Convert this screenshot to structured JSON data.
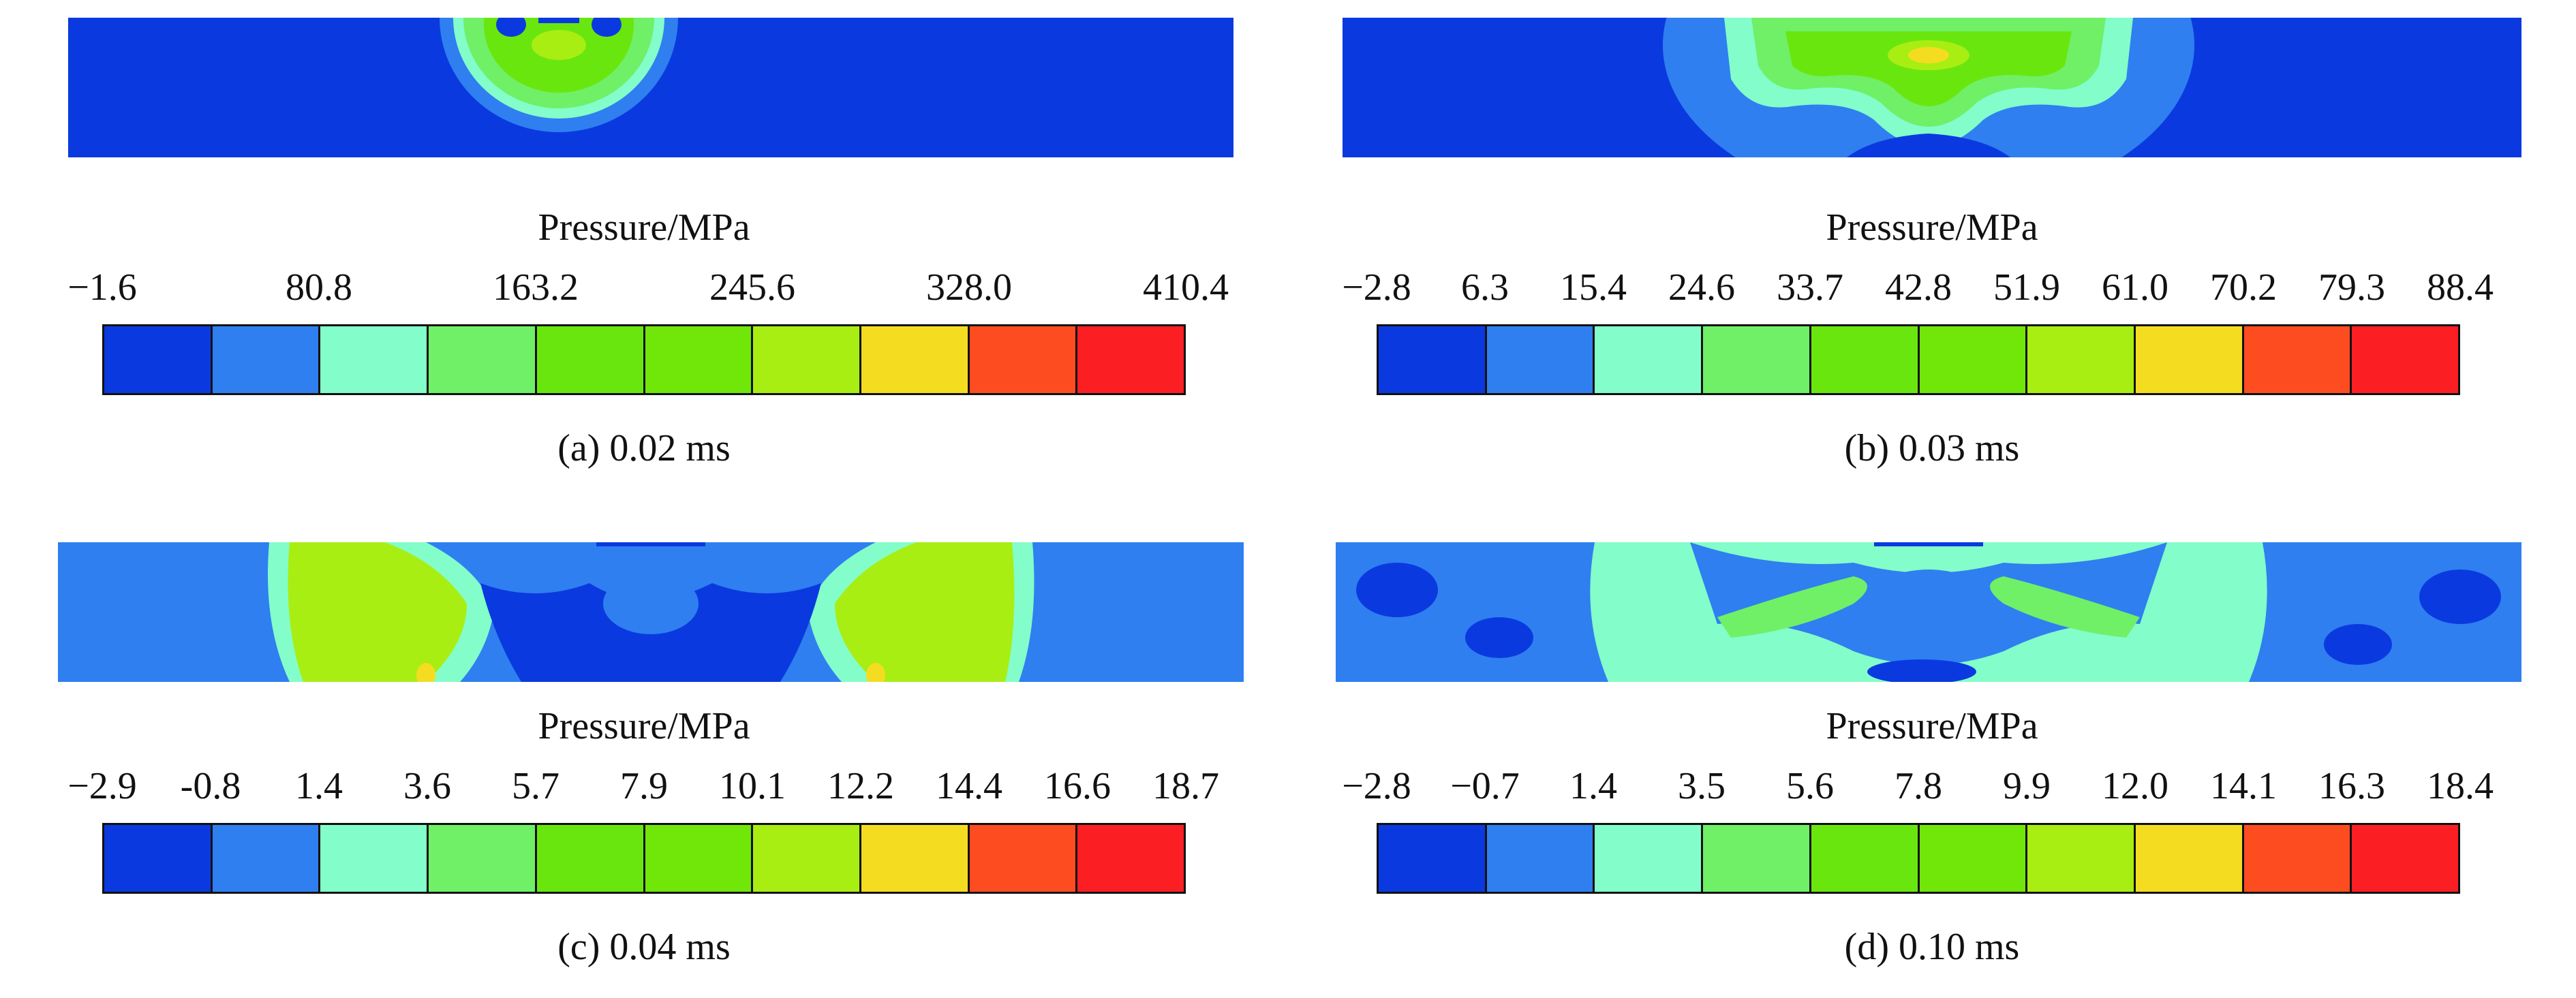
{
  "palette": [
    "#0a3adf",
    "#2f7ff0",
    "#83fdc9",
    "#6ff067",
    "#6ae60f",
    "#71e609",
    "#a8ee12",
    "#f4dd21",
    "#fe4c21",
    "#fb1f24"
  ],
  "panels": [
    {
      "legend_title": "Pressure/MPa",
      "ticks": [
        "−1.6",
        "80.8",
        "163.2",
        "245.6",
        "328.0",
        "410.4"
      ],
      "caption": "(a) 0.02 ms"
    },
    {
      "legend_title": "Pressure/MPa",
      "ticks": [
        "−2.8",
        "6.3",
        "15.4",
        "24.6",
        "33.7",
        "42.8",
        "51.9",
        "61.0",
        "70.2",
        "79.3",
        "88.4"
      ],
      "caption": "(b) 0.03 ms"
    },
    {
      "legend_title": "Pressure/MPa",
      "ticks": [
        "−2.9",
        "-0.8",
        "1.4",
        "3.6",
        "5.7",
        "7.9",
        "10.1",
        "12.2",
        "14.4",
        "16.6",
        "18.7"
      ],
      "caption": "(c) 0.04 ms"
    },
    {
      "legend_title": "Pressure/MPa",
      "ticks": [
        "−2.8",
        "−0.7",
        "1.4",
        "3.5",
        "5.6",
        "7.8",
        "9.9",
        "12.0",
        "14.1",
        "16.3",
        "18.4"
      ],
      "caption": "(d) 0.10 ms"
    }
  ]
}
